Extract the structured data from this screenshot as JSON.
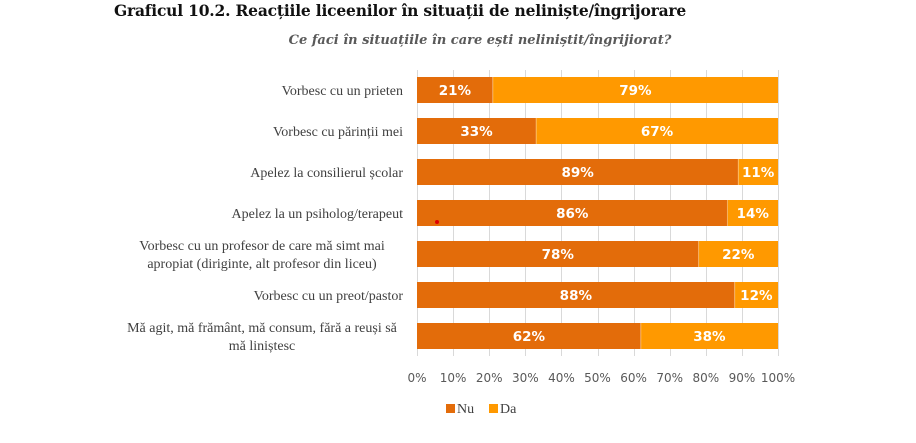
{
  "chart_data": {
    "type": "bar",
    "orientation": "horizontal",
    "stacked": "percent",
    "title": "Graficul 10.2. Reacțiile liceenilor în situații de neliniște/îngrijorare",
    "subtitle": "Ce faci în situațiile în care ești neliniștit/îngrijiorat?",
    "xlabel": "",
    "ylabel": "",
    "xlim": [
      0,
      100
    ],
    "grid": true,
    "legend_position": "bottom",
    "categories": [
      [
        "Vorbesc cu un prieten"
      ],
      [
        "Vorbesc cu părinții mei"
      ],
      [
        "Apelez la consilierul școlar"
      ],
      [
        "Apelez la un psiholog/terapeut"
      ],
      [
        "Vorbesc cu un profesor de care mă simt mai",
        "apropiat (diriginte, alt profesor din liceu)"
      ],
      [
        "Vorbesc cu un preot/pastor"
      ],
      [
        "Mă agit, mă frământ, mă consum, fără a reuși să",
        "mă liniștesc"
      ]
    ],
    "series": [
      {
        "name": "Nu",
        "color": "#E36C0A",
        "values": [
          21,
          33,
          89,
          86,
          78,
          88,
          62
        ],
        "labels": [
          "21%",
          "33%",
          "89%",
          "86%",
          "78%",
          "88%",
          "62%"
        ]
      },
      {
        "name": "Da",
        "color": "#FF9900",
        "values": [
          79,
          67,
          11,
          14,
          22,
          12,
          38
        ],
        "labels": [
          "79%",
          "67%",
          "11%",
          "14%",
          "22%",
          "12%",
          "38%"
        ]
      }
    ],
    "x_ticks": [
      0,
      10,
      20,
      30,
      40,
      50,
      60,
      70,
      80,
      90,
      100
    ],
    "x_tick_labels": [
      "0%",
      "10%",
      "20%",
      "30%",
      "40%",
      "50%",
      "60%",
      "70%",
      "80%",
      "90%",
      "100%"
    ]
  },
  "colors": {
    "grid": "#D9D9D9",
    "cursor_marker": "#E00000"
  }
}
